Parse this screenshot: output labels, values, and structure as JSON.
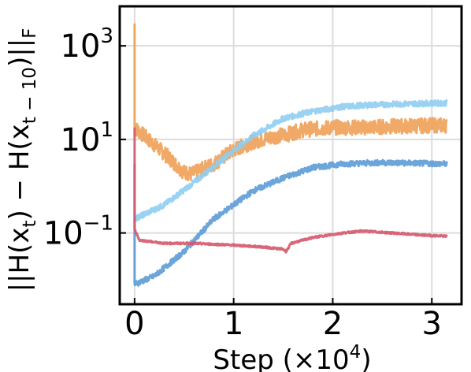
{
  "chart_data": {
    "type": "line",
    "title": "",
    "xlabel": "Step (×10⁴)",
    "ylabel": "||H(xₜ) − H(xₜ₋₁₀)||_F",
    "x_unit_multiplier": 10000,
    "yscale": "log",
    "xlim": [
      -0.15,
      3.3
    ],
    "ylim": [
      0.003,
      7000
    ],
    "grid": true,
    "legend": "none",
    "x_ticks": [
      {
        "value": 0,
        "label": "0"
      },
      {
        "value": 1,
        "label": "1"
      },
      {
        "value": 2,
        "label": "2"
      },
      {
        "value": 3,
        "label": "3"
      }
    ],
    "y_ticks": [
      {
        "value": 0.1,
        "base": "10",
        "exp": "−1"
      },
      {
        "value": 10,
        "base": "10",
        "exp": "1"
      },
      {
        "value": 1000,
        "base": "10",
        "exp": "3"
      }
    ],
    "series": [
      {
        "color": "#f0a056",
        "noise": 0.16,
        "spike": {
          "x": 0.0,
          "y": 3000
        },
        "points": [
          [
            0.0,
            18
          ],
          [
            0.3,
            5
          ],
          [
            0.5,
            2
          ],
          [
            0.58,
            1.8
          ],
          [
            0.8,
            3
          ],
          [
            1.0,
            6
          ],
          [
            1.2,
            9
          ],
          [
            1.45,
            12
          ],
          [
            1.55,
            13
          ],
          [
            1.7,
            16
          ],
          [
            2.0,
            18
          ],
          [
            2.3,
            18
          ],
          [
            2.6,
            19
          ],
          [
            3.0,
            20
          ],
          [
            3.15,
            20
          ]
        ]
      },
      {
        "color": "#8fcdf2",
        "noise": 0.06,
        "points": [
          [
            0.0,
            0.2
          ],
          [
            0.3,
            0.4
          ],
          [
            0.6,
            1.2
          ],
          [
            0.9,
            4
          ],
          [
            1.2,
            12
          ],
          [
            1.5,
            28
          ],
          [
            1.8,
            40
          ],
          [
            2.1,
            50
          ],
          [
            2.4,
            55
          ],
          [
            2.8,
            58
          ],
          [
            3.15,
            60
          ]
        ]
      },
      {
        "color": "#5b9bd5",
        "noise": 0.06,
        "spike": {
          "x": 0.0,
          "y": 3
        },
        "points": [
          [
            0.0,
            0.008
          ],
          [
            0.2,
            0.012
          ],
          [
            0.5,
            0.04
          ],
          [
            0.8,
            0.2
          ],
          [
            1.0,
            0.4
          ],
          [
            1.2,
            0.8
          ],
          [
            1.5,
            1.5
          ],
          [
            1.8,
            2.5
          ],
          [
            2.1,
            3
          ],
          [
            2.5,
            3.2
          ],
          [
            3.15,
            3
          ]
        ]
      },
      {
        "color": "#d4566b",
        "noise": 0.02,
        "spike": {
          "x": 0.0,
          "y": 18
        },
        "points": [
          [
            0.0,
            0.12
          ],
          [
            0.05,
            0.07
          ],
          [
            0.3,
            0.06
          ],
          [
            0.6,
            0.06
          ],
          [
            1.0,
            0.055
          ],
          [
            1.3,
            0.05
          ],
          [
            1.5,
            0.045
          ],
          [
            1.53,
            0.04
          ],
          [
            1.58,
            0.06
          ],
          [
            1.8,
            0.08
          ],
          [
            2.1,
            0.1
          ],
          [
            2.3,
            0.11
          ],
          [
            2.6,
            0.1
          ],
          [
            2.9,
            0.09
          ],
          [
            3.15,
            0.085
          ]
        ]
      }
    ]
  }
}
